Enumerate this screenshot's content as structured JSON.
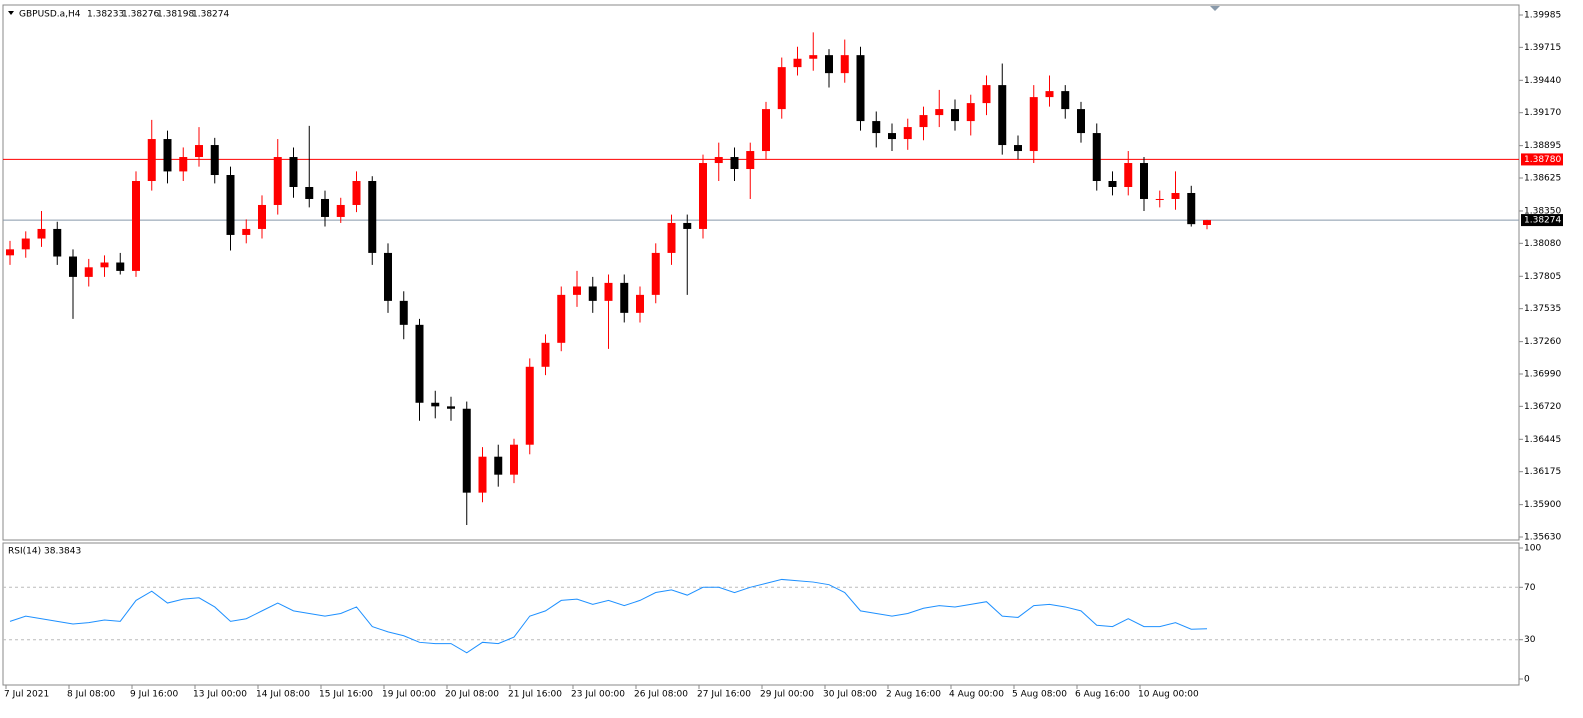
{
  "chart_data": [
    {
      "type": "candlestick",
      "title": "GBPUSD.a,H4",
      "up_color": "#ff0000",
      "down_color": "#000000",
      "categories": [
        "7 Jul 2021",
        null,
        null,
        null,
        "8 Jul 08:00",
        null,
        null,
        null,
        "9 Jul 16:00",
        null,
        null,
        null,
        "13 Jul 00:00",
        null,
        null,
        null,
        "14 Jul 08:00",
        null,
        null,
        null,
        "15 Jul 16:00",
        null,
        null,
        null,
        "19 Jul 00:00",
        null,
        null,
        null,
        "20 Jul 08:00",
        null,
        null,
        null,
        "21 Jul 16:00",
        null,
        null,
        null,
        "23 Jul 00:00",
        null,
        null,
        null,
        "26 Jul 08:00",
        null,
        null,
        null,
        "27 Jul 16:00",
        null,
        null,
        null,
        "29 Jul 00:00",
        null,
        null,
        null,
        "30 Jul 08:00",
        null,
        null,
        null,
        "2 Aug 16:00",
        null,
        null,
        null,
        "4 Aug 00:00",
        null,
        null,
        null,
        "5 Aug 08:00",
        null,
        null,
        null,
        "6 Aug 16:00",
        null,
        null,
        null,
        "10 Aug 00:00",
        null,
        null,
        null,
        null
      ],
      "open": [
        1.3798,
        1.3803,
        1.3812,
        1.382,
        1.3797,
        1.378,
        1.3788,
        1.3792,
        1.3785,
        1.386,
        1.3895,
        1.3868,
        1.388,
        1.389,
        1.3865,
        1.3815,
        1.382,
        1.384,
        1.388,
        1.3855,
        1.3845,
        1.383,
        1.384,
        1.386,
        1.38,
        1.376,
        1.374,
        1.3675,
        1.3672,
        1.367,
        1.36,
        1.363,
        1.3615,
        1.364,
        1.3705,
        1.3725,
        1.3765,
        1.3772,
        1.376,
        1.3775,
        1.375,
        1.3765,
        1.38,
        1.3825,
        1.382,
        1.3875,
        1.388,
        1.387,
        1.3885,
        1.392,
        1.3955,
        1.3962,
        1.3965,
        1.395,
        1.3965,
        1.391,
        1.39,
        1.3895,
        1.3905,
        1.3915,
        1.392,
        1.391,
        1.3925,
        1.394,
        1.389,
        1.3885,
        1.393,
        1.3935,
        1.392,
        1.39,
        1.386,
        1.3855,
        1.3875,
        1.3845,
        1.3845,
        1.385,
        1.38233
      ],
      "high": [
        1.381,
        1.3818,
        1.3835,
        1.3826,
        1.3803,
        1.3795,
        1.3798,
        1.38,
        1.3868,
        1.3911,
        1.3902,
        1.3888,
        1.3905,
        1.3896,
        1.3872,
        1.3828,
        1.3848,
        1.3895,
        1.3888,
        1.3906,
        1.3852,
        1.3846,
        1.3868,
        1.3864,
        1.3808,
        1.3768,
        1.3745,
        1.3685,
        1.368,
        1.3676,
        1.3638,
        1.364,
        1.3645,
        1.3712,
        1.3732,
        1.3772,
        1.3785,
        1.378,
        1.3782,
        1.3782,
        1.3772,
        1.3808,
        1.3832,
        1.3832,
        1.3882,
        1.3892,
        1.3888,
        1.3892,
        1.3926,
        1.3963,
        1.3972,
        1.3984,
        1.397,
        1.3978,
        1.3972,
        1.3918,
        1.3908,
        1.3912,
        1.3922,
        1.3936,
        1.3928,
        1.3932,
        1.3948,
        1.3958,
        1.3898,
        1.394,
        1.3948,
        1.394,
        1.3926,
        1.3908,
        1.3868,
        1.3885,
        1.388,
        1.3852,
        1.3868,
        1.3856,
        1.38276
      ],
      "low": [
        1.379,
        1.3796,
        1.3805,
        1.379,
        1.3745,
        1.3772,
        1.378,
        1.3782,
        1.378,
        1.3852,
        1.3858,
        1.386,
        1.3872,
        1.3858,
        1.3802,
        1.3808,
        1.3812,
        1.3832,
        1.3846,
        1.3838,
        1.3822,
        1.3825,
        1.3834,
        1.379,
        1.375,
        1.3728,
        1.366,
        1.3662,
        1.366,
        1.3573,
        1.3592,
        1.3605,
        1.3608,
        1.3632,
        1.3698,
        1.3718,
        1.3755,
        1.375,
        1.372,
        1.3742,
        1.3742,
        1.3758,
        1.379,
        1.3765,
        1.3812,
        1.386,
        1.386,
        1.3845,
        1.3878,
        1.3912,
        1.3948,
        1.3952,
        1.3938,
        1.3942,
        1.3902,
        1.3888,
        1.3885,
        1.3886,
        1.3894,
        1.3905,
        1.3902,
        1.3898,
        1.3915,
        1.3882,
        1.3878,
        1.3875,
        1.3922,
        1.3912,
        1.3892,
        1.3852,
        1.3848,
        1.3848,
        1.3835,
        1.3838,
        1.3836,
        1.3822,
        1.38198
      ],
      "close": [
        1.3803,
        1.3812,
        1.382,
        1.3797,
        1.378,
        1.3788,
        1.3792,
        1.3785,
        1.386,
        1.3895,
        1.3868,
        1.388,
        1.389,
        1.3865,
        1.3815,
        1.382,
        1.384,
        1.388,
        1.3855,
        1.3845,
        1.383,
        1.384,
        1.386,
        1.38,
        1.376,
        1.374,
        1.3675,
        1.3672,
        1.367,
        1.36,
        1.363,
        1.3615,
        1.364,
        1.3705,
        1.3725,
        1.3765,
        1.3772,
        1.376,
        1.3775,
        1.375,
        1.3765,
        1.38,
        1.3825,
        1.382,
        1.3875,
        1.388,
        1.387,
        1.3885,
        1.392,
        1.3955,
        1.3962,
        1.3965,
        1.395,
        1.3965,
        1.391,
        1.39,
        1.3895,
        1.3905,
        1.3915,
        1.392,
        1.391,
        1.3925,
        1.394,
        1.389,
        1.3885,
        1.393,
        1.3935,
        1.392,
        1.39,
        1.386,
        1.3855,
        1.3875,
        1.3845,
        1.3845,
        1.385,
        1.3824,
        1.38274
      ],
      "ylim": [
        1.35605,
        1.4006
      ],
      "yticks": [
        1.39985,
        1.39715,
        {
          "value": 1.3944,
          "label": "1.39440"
        },
        {
          "value": 1.3917,
          "label": "1.39170"
        },
        1.38895,
        1.38625,
        {
          "value": 1.3835,
          "label": "1.38350"
        },
        {
          "value": 1.3808,
          "label": "1.38080"
        },
        1.37805,
        1.37535,
        {
          "value": 1.3726,
          "label": "1.37260"
        },
        {
          "value": 1.3699,
          "label": "1.36990"
        },
        {
          "value": 1.3672,
          "label": "1.36720"
        },
        1.36445,
        1.36175,
        {
          "value": 1.359,
          "label": "1.35900"
        },
        {
          "value": 1.3563,
          "label": "1.35630"
        }
      ],
      "hlines": [
        {
          "value": 1.3878,
          "label": "1.38780",
          "color": "#ff0000"
        },
        {
          "value": 1.38274,
          "color": "#8899aa"
        }
      ]
    },
    {
      "type": "line",
      "title": "RSI(14)",
      "color": "#1e90ff",
      "values": [
        44,
        48,
        46,
        44,
        42,
        43,
        45,
        44,
        60,
        67,
        58,
        61,
        62,
        55,
        44,
        46,
        52,
        58,
        52,
        50,
        48,
        50,
        55,
        40,
        36,
        33,
        28,
        27,
        27,
        20,
        28,
        27,
        32,
        48,
        52,
        60,
        61,
        57,
        60,
        56,
        60,
        66,
        68,
        64,
        70,
        70,
        66,
        70,
        73,
        76,
        75,
        74,
        72,
        66,
        52,
        50,
        48,
        50,
        54,
        56,
        55,
        57,
        59,
        48,
        47,
        56,
        57,
        55,
        52,
        41,
        40,
        46,
        40,
        40,
        43,
        38,
        38.3843
      ],
      "ylim": [
        0,
        100
      ],
      "yticks": [
        0,
        30,
        70,
        100
      ]
    }
  ]
}
